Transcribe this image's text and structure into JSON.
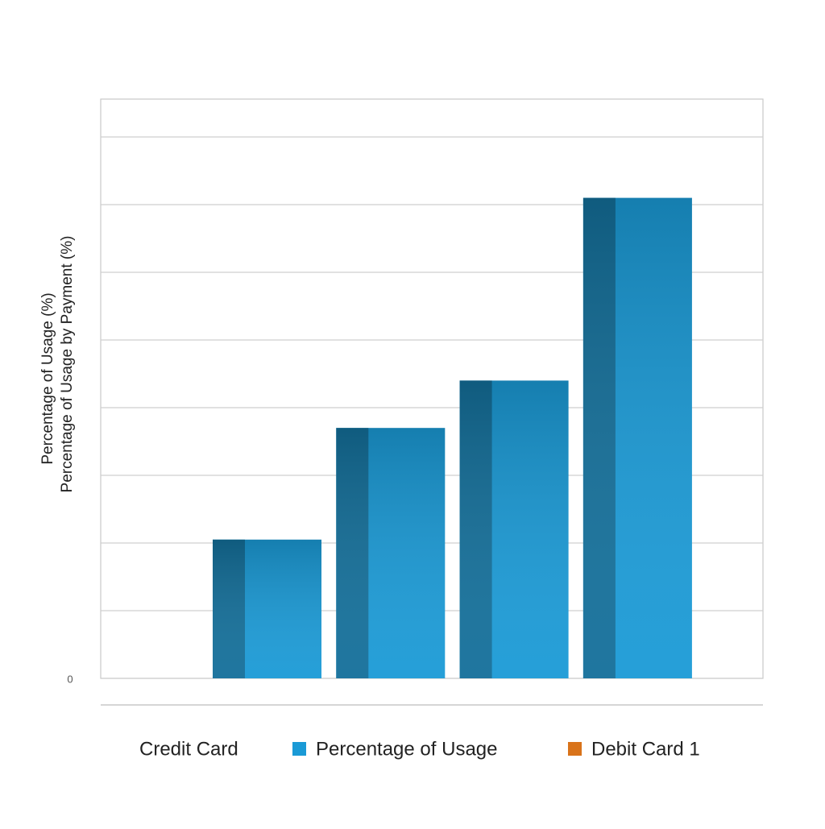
{
  "chart_data": {
    "type": "bar",
    "y_label": [
      "Percentage of Usage (%)",
      "Percentage of Usage by Payment (%)"
    ],
    "categories": [
      null,
      null,
      null,
      null
    ],
    "series": [
      {
        "name": "Percentage of Usage",
        "color": "#1a9ad6",
        "values": [
          2.05,
          3.7,
          4.4,
          7.1
        ]
      }
    ],
    "ylim": [
      0,
      8.5
    ],
    "yticks": [
      0,
      1,
      2,
      3,
      4,
      5,
      6,
      7,
      8
    ],
    "ytick_labels": [
      {
        "value": 0,
        "label": "0"
      }
    ],
    "grid": true,
    "legend": [
      {
        "label": "Credit Card"
      },
      {
        "label": "Percentage of Usage",
        "color": "#1a9ad6"
      },
      {
        "label": "Debit Card 1",
        "color": "#d9731a"
      }
    ]
  }
}
